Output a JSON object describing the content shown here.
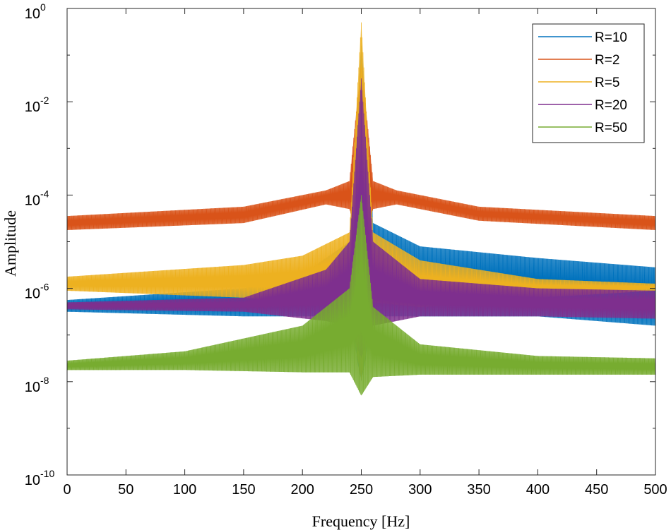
{
  "chart_data": {
    "type": "line",
    "title": "",
    "xlabel": "Frequency [Hz]",
    "ylabel": "Amplitude",
    "xlim": [
      0,
      500
    ],
    "ylim_log10": [
      -10,
      0
    ],
    "yscale": "log",
    "x_ticks": [
      0,
      50,
      100,
      150,
      200,
      250,
      300,
      350,
      400,
      450,
      500
    ],
    "x_tick_labels": [
      "0",
      "50",
      "100",
      "150",
      "200",
      "250",
      "300",
      "350",
      "400",
      "450",
      "500"
    ],
    "y_tick_exponents": [
      -10,
      -8,
      -6,
      -4,
      -2,
      0
    ],
    "y_tick_bases": [
      "10",
      "10",
      "10",
      "10",
      "10",
      "10"
    ],
    "y_tick_sup": [
      "-10",
      "-8",
      "-6",
      "-4",
      "-2",
      "0"
    ],
    "legend_position": "top-right",
    "series": [
      {
        "name": "R=10",
        "color": "#0072BD",
        "envelope_log10": [
          {
            "f": 0,
            "upper": -6.25,
            "lower": -6.5
          },
          {
            "f": 150,
            "upper": -6.0,
            "lower": -6.6
          },
          {
            "f": 200,
            "upper": -5.7,
            "lower": -6.6
          },
          {
            "f": 240,
            "upper": -5.0,
            "lower": -6.6
          },
          {
            "f": 250,
            "upper": -0.8,
            "lower": -8.0
          },
          {
            "f": 260,
            "upper": -4.6,
            "lower": -6.6
          },
          {
            "f": 300,
            "upper": -5.1,
            "lower": -6.6
          },
          {
            "f": 400,
            "upper": -5.35,
            "lower": -6.6
          },
          {
            "f": 500,
            "upper": -5.55,
            "lower": -6.8
          }
        ]
      },
      {
        "name": "R=2",
        "color": "#D95319",
        "envelope_log10": [
          {
            "f": 0,
            "upper": -4.45,
            "lower": -4.75
          },
          {
            "f": 150,
            "upper": -4.25,
            "lower": -4.6
          },
          {
            "f": 220,
            "upper": -3.9,
            "lower": -4.2
          },
          {
            "f": 240,
            "upper": -3.7,
            "lower": -4.3
          },
          {
            "f": 250,
            "upper": -1.1,
            "lower": -5.2
          },
          {
            "f": 260,
            "upper": -3.7,
            "lower": -4.3
          },
          {
            "f": 280,
            "upper": -3.9,
            "lower": -4.2
          },
          {
            "f": 350,
            "upper": -4.25,
            "lower": -4.55
          },
          {
            "f": 500,
            "upper": -4.45,
            "lower": -4.75
          }
        ]
      },
      {
        "name": "R=5",
        "color": "#EDB120",
        "envelope_log10": [
          {
            "f": 0,
            "upper": -5.75,
            "lower": -6.05
          },
          {
            "f": 150,
            "upper": -5.5,
            "lower": -6.2
          },
          {
            "f": 200,
            "upper": -5.3,
            "lower": -6.3
          },
          {
            "f": 240,
            "upper": -4.8,
            "lower": -6.3
          },
          {
            "f": 250,
            "upper": -0.3,
            "lower": -8.0
          },
          {
            "f": 260,
            "upper": -4.8,
            "lower": -6.3
          },
          {
            "f": 300,
            "upper": -5.4,
            "lower": -6.4
          },
          {
            "f": 400,
            "upper": -5.8,
            "lower": -6.2
          },
          {
            "f": 500,
            "upper": -5.9,
            "lower": -6.05
          }
        ]
      },
      {
        "name": "R=20",
        "color": "#7E2F8E",
        "envelope_log10": [
          {
            "f": 0,
            "upper": -6.3,
            "lower": -6.45
          },
          {
            "f": 150,
            "upper": -6.2,
            "lower": -6.5
          },
          {
            "f": 220,
            "upper": -5.6,
            "lower": -6.7
          },
          {
            "f": 240,
            "upper": -5.0,
            "lower": -6.8
          },
          {
            "f": 250,
            "upper": -1.5,
            "lower": -7.5
          },
          {
            "f": 260,
            "upper": -5.0,
            "lower": -6.8
          },
          {
            "f": 300,
            "upper": -5.8,
            "lower": -6.6
          },
          {
            "f": 400,
            "upper": -6.0,
            "lower": -6.6
          },
          {
            "f": 500,
            "upper": -6.05,
            "lower": -6.65
          }
        ]
      },
      {
        "name": "R=50",
        "color": "#77AC30",
        "envelope_log10": [
          {
            "f": 0,
            "upper": -7.55,
            "lower": -7.75
          },
          {
            "f": 100,
            "upper": -7.35,
            "lower": -7.75
          },
          {
            "f": 200,
            "upper": -6.8,
            "lower": -7.8
          },
          {
            "f": 240,
            "upper": -6.0,
            "lower": -7.8
          },
          {
            "f": 250,
            "upper": -4.0,
            "lower": -8.3
          },
          {
            "f": 260,
            "upper": -6.4,
            "lower": -7.9
          },
          {
            "f": 300,
            "upper": -7.2,
            "lower": -7.85
          },
          {
            "f": 400,
            "upper": -7.45,
            "lower": -7.85
          },
          {
            "f": 500,
            "upper": -7.5,
            "lower": -7.85
          }
        ]
      }
    ]
  }
}
